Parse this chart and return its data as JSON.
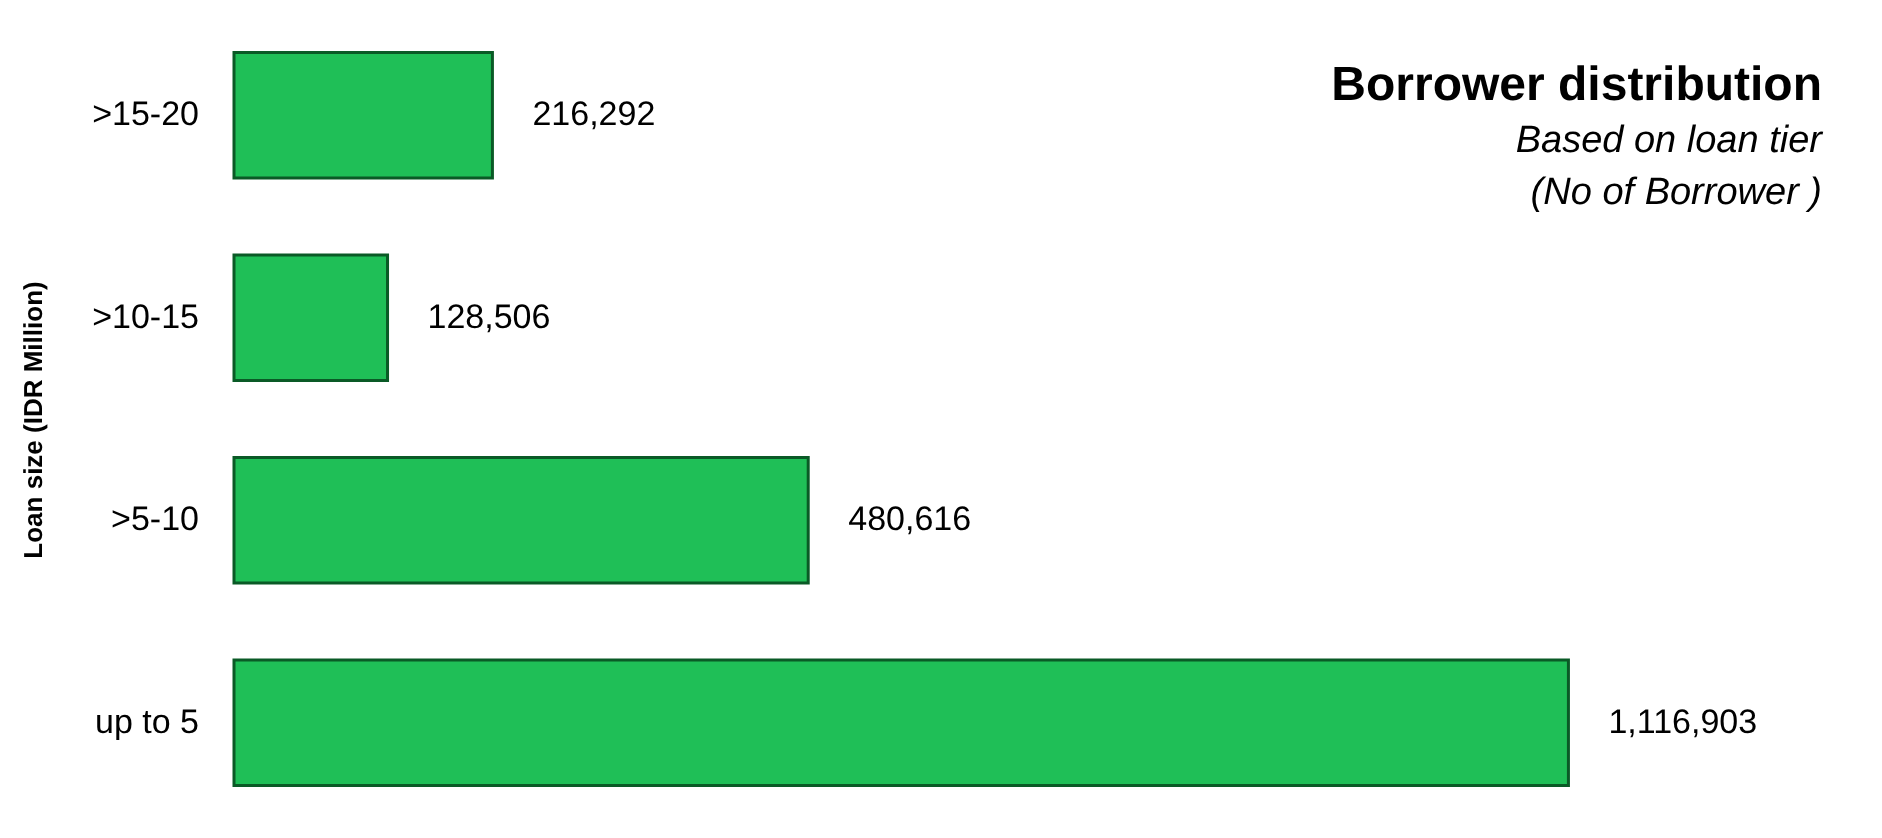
{
  "chart_data": {
    "type": "bar",
    "orientation": "horizontal",
    "title": "Borrower distribution",
    "subtitle": "Based on loan tier\n(No of Borrower )",
    "ylabel": "Loan size (IDR Million)",
    "categories": [
      ">15-20",
      ">10-15",
      ">5-10",
      "up to 5"
    ],
    "values": [
      216292,
      128506,
      480616,
      1116903
    ],
    "value_labels": [
      "216,292",
      "128,506",
      "480,616",
      "1,116,903"
    ],
    "color": "#1fbf57",
    "grid": false
  }
}
